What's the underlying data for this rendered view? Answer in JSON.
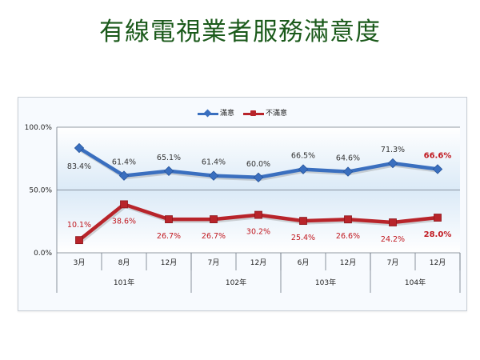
{
  "slide": {
    "title": "有線電視業者服務滿意度"
  },
  "chart_data": {
    "type": "line",
    "categories": [
      "3月",
      "8月",
      "12月",
      "7月",
      "12月",
      "6月",
      "12月",
      "7月",
      "12月"
    ],
    "year_groups": [
      {
        "label": "101年",
        "span": 3
      },
      {
        "label": "102年",
        "span": 2
      },
      {
        "label": "103年",
        "span": 2
      },
      {
        "label": "104年",
        "span": 2
      }
    ],
    "series": [
      {
        "name": "滿意",
        "color": "#3a6fbf",
        "values": [
          83.4,
          61.4,
          65.1,
          61.4,
          60.0,
          66.5,
          64.6,
          71.3,
          66.6
        ],
        "labels": [
          "83.4%",
          "61.4%",
          "65.1%",
          "61.4%",
          "60.0%",
          "66.5%",
          "64.6%",
          "71.3%",
          "66.6%"
        ],
        "label_color": "#333333",
        "highlight_color": "#c0181f"
      },
      {
        "name": "不滿意",
        "color": "#b8242a",
        "values": [
          10.1,
          38.6,
          26.7,
          26.7,
          30.2,
          25.4,
          26.6,
          24.2,
          28.0
        ],
        "labels": [
          "10.1%",
          "38.6%",
          "26.7%",
          "26.7%",
          "30.2%",
          "25.4%",
          "26.6%",
          "24.2%",
          "28.0%"
        ],
        "label_color": "#c0181f",
        "highlight_color": "#c0181f"
      }
    ],
    "ylim": [
      0,
      100
    ],
    "y_ticks": [
      0,
      50,
      100
    ],
    "y_tick_labels": [
      "0.0%",
      "50.0%",
      "100.0%"
    ],
    "grid": true,
    "legend_position": "top-center"
  }
}
